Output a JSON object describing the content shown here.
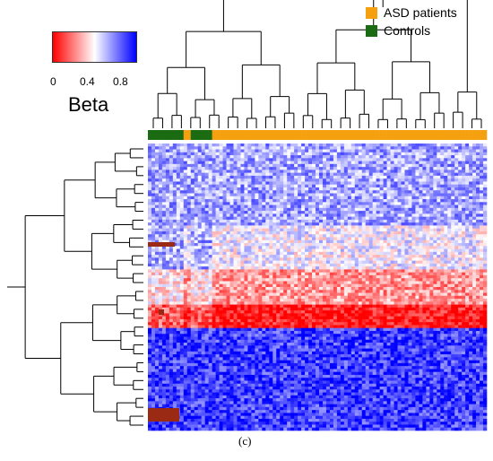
{
  "legend": {
    "items": [
      {
        "label": "ASD patients",
        "color": "#f5a00f"
      },
      {
        "label": "Controls",
        "color": "#1a6b12"
      }
    ]
  },
  "color_scale": {
    "title": "Beta",
    "ticks": [
      "0",
      "0.4",
      "0.8"
    ],
    "low_color": "#ff0000",
    "mid_color": "#ffffff",
    "high_color": "#0000ff"
  },
  "caption": "(c)",
  "chart_data": {
    "type": "heatmap",
    "value_label": "Beta",
    "value_range": [
      0,
      1
    ],
    "column_groups": [
      "Controls",
      "Controls",
      "Controls",
      "Controls",
      "Controls",
      "Controls",
      "Controls",
      "Controls",
      "Controls",
      "Controls",
      "ASD patients",
      "ASD patients",
      "Controls",
      "Controls",
      "Controls",
      "Controls",
      "Controls",
      "Controls",
      "ASD patients",
      "ASD patients",
      "ASD patients",
      "ASD patients",
      "ASD patients",
      "ASD patients",
      "ASD patients",
      "ASD patients",
      "ASD patients",
      "ASD patients",
      "ASD patients",
      "ASD patients",
      "ASD patients",
      "ASD patients",
      "ASD patients",
      "ASD patients",
      "ASD patients",
      "ASD patients",
      "ASD patients",
      "ASD patients",
      "ASD patients",
      "ASD patients",
      "ASD patients",
      "ASD patients",
      "ASD patients",
      "ASD patients",
      "ASD patients",
      "ASD patients",
      "ASD patients",
      "ASD patients",
      "ASD patients",
      "ASD patients",
      "ASD patients",
      "ASD patients",
      "ASD patients",
      "ASD patients",
      "ASD patients",
      "ASD patients",
      "ASD patients",
      "ASD patients",
      "ASD patients",
      "ASD patients",
      "ASD patients",
      "ASD patients",
      "ASD patients",
      "ASD patients",
      "ASD patients",
      "ASD patients",
      "ASD patients",
      "ASD patients",
      "ASD patients",
      "ASD patients",
      "ASD patients",
      "ASD patients",
      "ASD patients",
      "ASD patients",
      "ASD patients",
      "ASD patients",
      "ASD patients",
      "ASD patients",
      "ASD patients",
      "ASD patients",
      "ASD patients",
      "ASD patients",
      "ASD patients",
      "ASD patients",
      "ASD patients",
      "ASD patients",
      "ASD patients",
      "ASD patients",
      "ASD patients",
      "ASD patients",
      "ASD patients",
      "ASD patients",
      "ASD patients",
      "ASD patients",
      "ASD patients"
    ],
    "row_blocks": [
      {
        "rows": 28,
        "mean_beta": 0.68
      },
      {
        "rows": 15,
        "mean_beta": 0.52
      },
      {
        "rows": 12,
        "mean_beta": 0.3
      },
      {
        "rows": 8,
        "mean_beta": 0.04
      },
      {
        "rows": 35,
        "mean_beta": 0.88
      }
    ],
    "row_dendrogram": true,
    "column_dendrogram": true
  }
}
